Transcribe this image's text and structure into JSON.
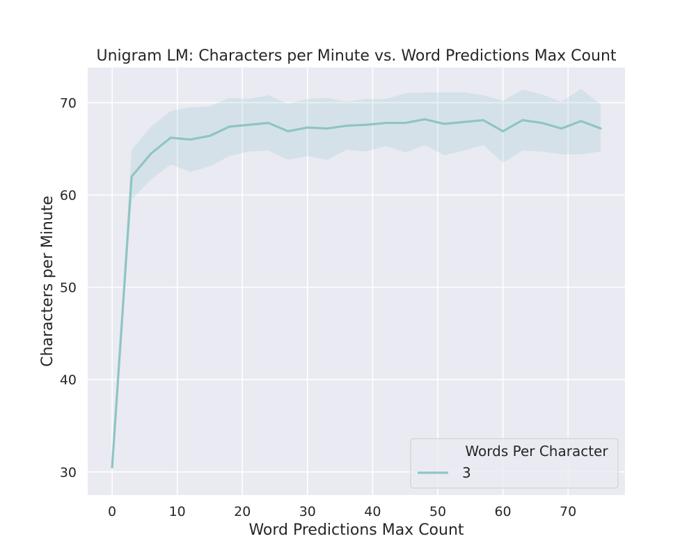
{
  "chart_data": {
    "type": "line",
    "title": "Unigram LM: Characters per Minute vs. Word Predictions Max Count",
    "xlabel": "Word Predictions Max Count",
    "ylabel": "Characters per Minute",
    "xlim": [
      -3.75,
      78.75
    ],
    "ylim": [
      27.5,
      73.8
    ],
    "xticks": [
      0,
      10,
      20,
      30,
      40,
      50,
      60,
      70
    ],
    "yticks": [
      30,
      40,
      50,
      60,
      70
    ],
    "grid": true,
    "legend": {
      "title": "Words Per Character",
      "location": "lower-right"
    },
    "x": [
      0,
      3,
      6,
      9,
      12,
      15,
      18,
      21,
      24,
      27,
      30,
      33,
      36,
      39,
      42,
      45,
      48,
      51,
      54,
      57,
      60,
      63,
      66,
      69,
      72,
      75
    ],
    "series": [
      {
        "name": "3",
        "color": "#8ec5c3",
        "values": [
          30.5,
          62.0,
          64.5,
          66.2,
          66.0,
          66.4,
          67.4,
          67.6,
          67.8,
          66.9,
          67.3,
          67.2,
          67.5,
          67.6,
          67.8,
          67.8,
          68.2,
          67.7,
          67.9,
          68.1,
          66.9,
          68.1,
          67.8,
          67.2,
          68.0,
          67.2
        ],
        "ci_lower": [
          30.5,
          59.5,
          61.7,
          63.3,
          62.5,
          63.1,
          64.2,
          64.7,
          64.8,
          63.8,
          64.2,
          63.8,
          64.9,
          64.7,
          65.3,
          64.6,
          65.4,
          64.3,
          64.8,
          65.4,
          63.5,
          64.8,
          64.7,
          64.4,
          64.4,
          64.7
        ],
        "ci_upper": [
          30.5,
          64.9,
          67.4,
          69.1,
          69.5,
          69.6,
          70.5,
          70.4,
          70.8,
          69.9,
          70.4,
          70.5,
          70.1,
          70.4,
          70.4,
          71.0,
          71.1,
          71.1,
          71.1,
          70.8,
          70.2,
          71.4,
          70.9,
          70.1,
          71.5,
          69.8
        ]
      }
    ]
  },
  "colors": {
    "plot_background": "#eaeaf2",
    "grid": "#ffffff",
    "text": "#262626",
    "legend_border": "#cccccc"
  }
}
